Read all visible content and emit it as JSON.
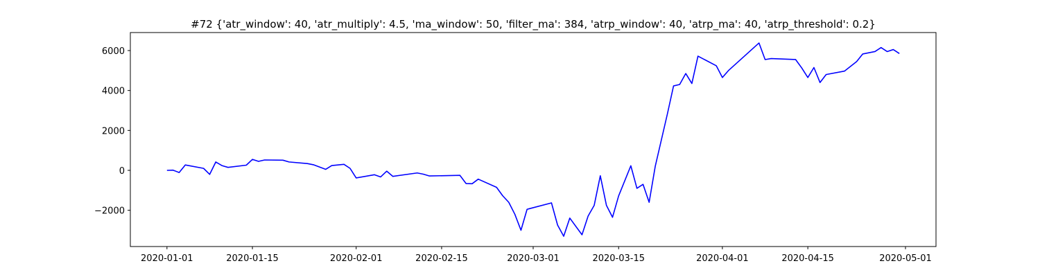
{
  "chart_data": {
    "type": "line",
    "title": "#72 {'atr_window': 40, 'atr_multiply': 4.5, 'ma_window': 50, 'filter_ma': 384, 'atrp_window': 40, 'atrp_ma': 40, 'atrp_threshold': 0.2}",
    "x": [
      "2020-01-01",
      "2020-01-02",
      "2020-01-03",
      "2020-01-04",
      "2020-01-07",
      "2020-01-08",
      "2020-01-09",
      "2020-01-10",
      "2020-01-11",
      "2020-01-14",
      "2020-01-15",
      "2020-01-16",
      "2020-01-17",
      "2020-01-20",
      "2020-01-21",
      "2020-01-24",
      "2020-01-25",
      "2020-01-27",
      "2020-01-28",
      "2020-01-30",
      "2020-01-31",
      "2020-02-01",
      "2020-02-04",
      "2020-02-05",
      "2020-02-06",
      "2020-02-07",
      "2020-02-11",
      "2020-02-12",
      "2020-02-13",
      "2020-02-18",
      "2020-02-19",
      "2020-02-20",
      "2020-02-21",
      "2020-02-24",
      "2020-02-25",
      "2020-02-26",
      "2020-02-27",
      "2020-02-28",
      "2020-02-29",
      "2020-03-04",
      "2020-03-05",
      "2020-03-06",
      "2020-03-07",
      "2020-03-09",
      "2020-03-10",
      "2020-03-11",
      "2020-03-12",
      "2020-03-13",
      "2020-03-14",
      "2020-03-15",
      "2020-03-17",
      "2020-03-18",
      "2020-03-19",
      "2020-03-20",
      "2020-03-21",
      "2020-03-23",
      "2020-03-24",
      "2020-03-25",
      "2020-03-26",
      "2020-03-27",
      "2020-03-28",
      "2020-03-31",
      "2020-04-01",
      "2020-04-02",
      "2020-04-07",
      "2020-04-08",
      "2020-04-09",
      "2020-04-13",
      "2020-04-14",
      "2020-04-15",
      "2020-04-16",
      "2020-04-17",
      "2020-04-18",
      "2020-04-21",
      "2020-04-23",
      "2020-04-24",
      "2020-04-26",
      "2020-04-27",
      "2020-04-28",
      "2020-04-29",
      "2020-04-30"
    ],
    "series": [
      {
        "color": "#0000ff",
        "values": [
          0,
          10,
          -110,
          270,
          100,
          -200,
          420,
          240,
          150,
          260,
          550,
          450,
          520,
          510,
          420,
          340,
          280,
          50,
          240,
          300,
          100,
          -380,
          -220,
          -330,
          -40,
          -300,
          -130,
          -190,
          -280,
          -250,
          -660,
          -670,
          -440,
          -850,
          -1270,
          -1600,
          -2200,
          -3000,
          -1950,
          -1630,
          -2740,
          -3300,
          -2390,
          -3225,
          -2290,
          -1750,
          -270,
          -1750,
          -2350,
          -1280,
          230,
          -900,
          -700,
          -1600,
          200,
          2840,
          4230,
          4300,
          4850,
          4350,
          5720,
          5240,
          4650,
          5000,
          6380,
          5550,
          5600,
          5550,
          5130,
          4650,
          5150,
          4400,
          4800,
          4970,
          5450,
          5830,
          5950,
          6150,
          5950,
          6050,
          5850
        ]
      }
    ],
    "xlim": [
      "2019-12-26",
      "2020-05-06"
    ],
    "xticks": [
      "2020-01-01",
      "2020-01-15",
      "2020-02-01",
      "2020-02-15",
      "2020-03-01",
      "2020-03-15",
      "2020-04-01",
      "2020-04-15",
      "2020-05-01"
    ],
    "ylim": [
      -3815,
      6902
    ],
    "yticks": [
      {
        "value": -2000,
        "label": "−2000"
      },
      0,
      2000,
      4000,
      6000
    ]
  }
}
